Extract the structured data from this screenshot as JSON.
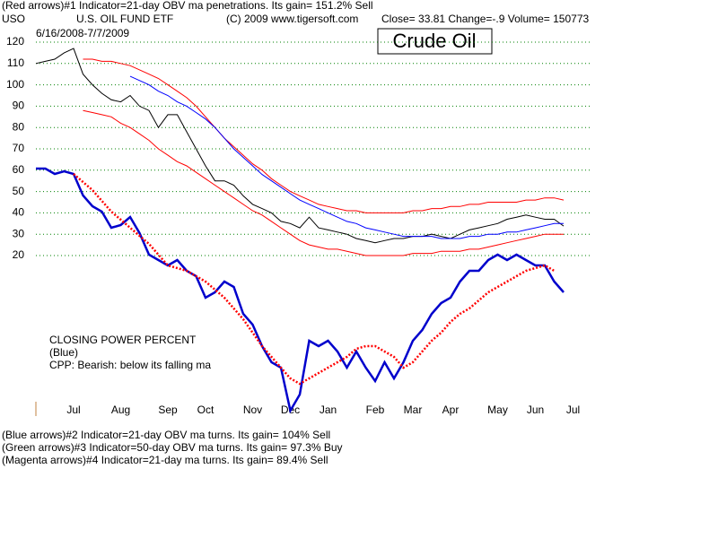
{
  "chart_data": {
    "type": "line",
    "title": "Crude Oil",
    "header": [
      "(Red arrows)#1 Indicator=21-day OBV ma penetrations. Its gain= 151.2% Sell",
      "USO",
      "U.S. OIL FUND ETF",
      "(C) 2009 www.tigersoft.com",
      "Close=  33.81  Change=-.9 Volume=  150773"
    ],
    "subtitle": "6/16/2008-7/7/2009",
    "annotations": [
      "CLOSING POWER PERCENT",
      "(Blue)",
      "CPP: Bearish: below its falling ma"
    ],
    "footer": [
      "(Blue arrows)#2 Indicator=21-day OBV ma turns. Its gain= 104% Sell",
      "(Green arrows)#3 Indicator=50-day OBV ma turns. Its gain= 97.3% Buy",
      "(Magenta arrows)#4 Indicator=21-day ma turns. Its gain= 89.4% Sell"
    ],
    "categories": [
      null,
      null,
      null,
      null,
      "Jul",
      null,
      null,
      null,
      null,
      "Aug",
      null,
      null,
      null,
      null,
      "Sep",
      null,
      null,
      null,
      "Oct",
      null,
      null,
      null,
      null,
      "Nov",
      null,
      null,
      null,
      "Dec",
      null,
      null,
      null,
      "Jan",
      null,
      null,
      null,
      null,
      "Feb",
      null,
      null,
      null,
      "Mar",
      null,
      null,
      null,
      "Apr",
      null,
      null,
      null,
      null,
      "May",
      null,
      null,
      null,
      "Jun",
      null,
      null,
      null,
      "Jul"
    ],
    "ylim": [
      20,
      120
    ],
    "yticks": [
      20,
      30,
      40,
      50,
      60,
      70,
      80,
      90,
      100,
      110,
      120
    ],
    "y2lim": [
      0,
      100
    ],
    "grid": true,
    "grid_color": "#008000",
    "series": [
      {
        "color": "#000000",
        "width": 1,
        "values": [
          110,
          111,
          112,
          115,
          117,
          105,
          100,
          96,
          93,
          92,
          95,
          90,
          88,
          80,
          86,
          86,
          78,
          70,
          62,
          55,
          55,
          53,
          48,
          44,
          42,
          40,
          36,
          35,
          33,
          38,
          33,
          32,
          31,
          30,
          28,
          27,
          26,
          27,
          28,
          28,
          29,
          29,
          30,
          29,
          28,
          30,
          32,
          33,
          34,
          35,
          37,
          38,
          39,
          38,
          37,
          37,
          33.81,
          null
        ]
      },
      {
        "color": "#ff0000",
        "width": 1,
        "values": [
          null,
          null,
          null,
          null,
          null,
          112,
          112,
          111,
          111,
          110,
          109,
          107,
          105,
          103,
          100,
          97,
          94,
          90,
          85,
          80,
          75,
          71,
          67,
          63,
          60,
          56,
          53,
          50,
          48,
          46,
          44,
          43,
          42,
          41,
          41,
          40,
          40,
          40,
          40,
          40,
          41,
          41,
          42,
          42,
          43,
          43,
          44,
          44,
          45,
          45,
          45,
          45,
          46,
          46,
          47,
          47,
          46,
          null
        ]
      },
      {
        "color": "#ff0000",
        "width": 1,
        "values": [
          null,
          null,
          null,
          null,
          null,
          88,
          87,
          86,
          85,
          82,
          80,
          77,
          74,
          70,
          67,
          64,
          62,
          59,
          56,
          53,
          50,
          47,
          44,
          41,
          39,
          36,
          33,
          30,
          27,
          25,
          24,
          23,
          23,
          22,
          21,
          20,
          20,
          20,
          20,
          20,
          21,
          21,
          21,
          22,
          22,
          22,
          23,
          23,
          24,
          25,
          26,
          27,
          28,
          29,
          30,
          30,
          30,
          null
        ]
      },
      {
        "color": "#0000ff",
        "width": 1,
        "values": [
          null,
          null,
          null,
          null,
          null,
          null,
          null,
          null,
          null,
          null,
          104,
          102,
          100,
          97,
          95,
          92,
          90,
          87,
          84,
          80,
          75,
          70,
          66,
          62,
          58,
          55,
          52,
          49,
          46,
          44,
          42,
          40,
          38,
          36,
          35,
          33,
          32,
          31,
          30,
          29,
          29,
          29,
          29,
          28,
          28,
          28,
          29,
          29,
          30,
          30,
          31,
          31,
          32,
          33,
          34,
          35,
          35,
          null
        ]
      },
      {
        "color": "#0000cc",
        "width": 2.5,
        "axis": "y2",
        "values": [
          94,
          94,
          92,
          93,
          92,
          84,
          80,
          78,
          72,
          73,
          76,
          70,
          62,
          60,
          58,
          60,
          56,
          54,
          46,
          48,
          52,
          50,
          40,
          36,
          28,
          22,
          20,
          4,
          10,
          30,
          28,
          30,
          26,
          20,
          26,
          20,
          15,
          22,
          16,
          22,
          30,
          34,
          40,
          44,
          46,
          52,
          56,
          56,
          60,
          62,
          60,
          62,
          60,
          58,
          58,
          52,
          48,
          null
        ]
      },
      {
        "color": "#ff0000",
        "width": 2.5,
        "axis": "y2",
        "style": "dotted",
        "values": [
          null,
          null,
          null,
          null,
          92,
          89,
          86,
          82,
          78,
          75,
          72,
          69,
          66,
          62,
          58,
          57,
          56,
          54,
          52,
          49,
          46,
          42,
          38,
          33,
          28,
          24,
          20,
          16,
          14,
          16,
          18,
          20,
          22,
          24,
          27,
          28,
          28,
          26,
          24,
          20,
          22,
          26,
          30,
          33,
          37,
          40,
          42,
          45,
          48,
          50,
          52,
          54,
          56,
          57,
          58,
          56,
          null,
          null
        ]
      }
    ]
  }
}
